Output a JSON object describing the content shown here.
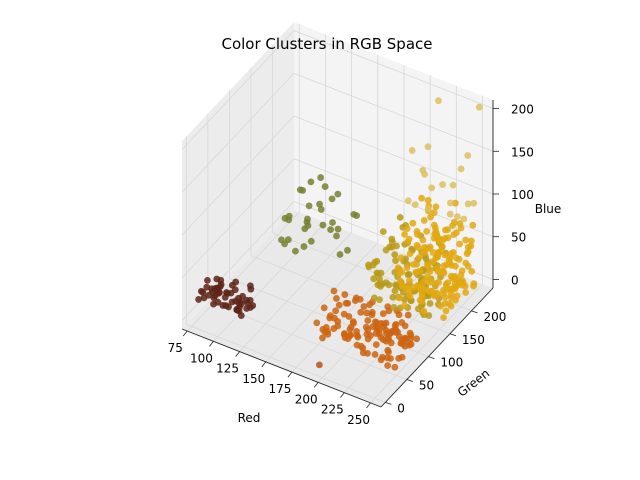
{
  "chart_data": {
    "type": "scatter",
    "projection": "3d",
    "title": "Color Clusters in RGB Space",
    "xlabel": "Red",
    "ylabel": "Green",
    "zlabel": "Blue",
    "xlim": [
      70,
      260
    ],
    "ylim": [
      -10,
      250
    ],
    "zlim": [
      -10,
      210
    ],
    "x_ticks": [
      75,
      100,
      125,
      150,
      175,
      200,
      225,
      250
    ],
    "y_ticks": [
      0,
      50,
      100,
      150,
      200
    ],
    "z_ticks": [
      0,
      50,
      100,
      150,
      200
    ],
    "grid": true,
    "legend": "none",
    "series": [
      {
        "color": "#5e2418",
        "point_count": 55,
        "values_approx": {
          "r_range": [
            72,
            120
          ],
          "g_range": [
            15,
            45
          ],
          "b_range": [
            8,
            35
          ]
        }
      },
      {
        "color": "#788030",
        "point_count": 32,
        "values_approx": {
          "r_range": [
            110,
            170
          ],
          "g_range": [
            110,
            170
          ],
          "b_range": [
            45,
            100
          ]
        }
      },
      {
        "color": "#cd6410",
        "point_count": 120,
        "values_approx": {
          "r_range": [
            170,
            250
          ],
          "g_range": [
            45,
            110
          ],
          "b_range": [
            0,
            30
          ]
        }
      },
      {
        "color": "#b89a18",
        "point_count": 110,
        "values_approx": {
          "r_range": [
            185,
            240
          ],
          "g_range": [
            140,
            200
          ],
          "b_range": [
            0,
            70
          ]
        }
      },
      {
        "color": "#e2a810",
        "point_count": 170,
        "values_approx": {
          "r_range": [
            205,
            255
          ],
          "g_range": [
            150,
            235
          ],
          "b_range": [
            0,
            90
          ]
        }
      },
      {
        "color": "#dcc060",
        "point_count": 20,
        "values_approx": {
          "r_range": [
            200,
            255
          ],
          "g_range": [
            170,
            250
          ],
          "b_range": [
            90,
            205
          ]
        }
      },
      {
        "color": "#c05018",
        "point_count": 1,
        "values": [
          [
            195,
            5,
            0
          ]
        ]
      }
    ]
  }
}
